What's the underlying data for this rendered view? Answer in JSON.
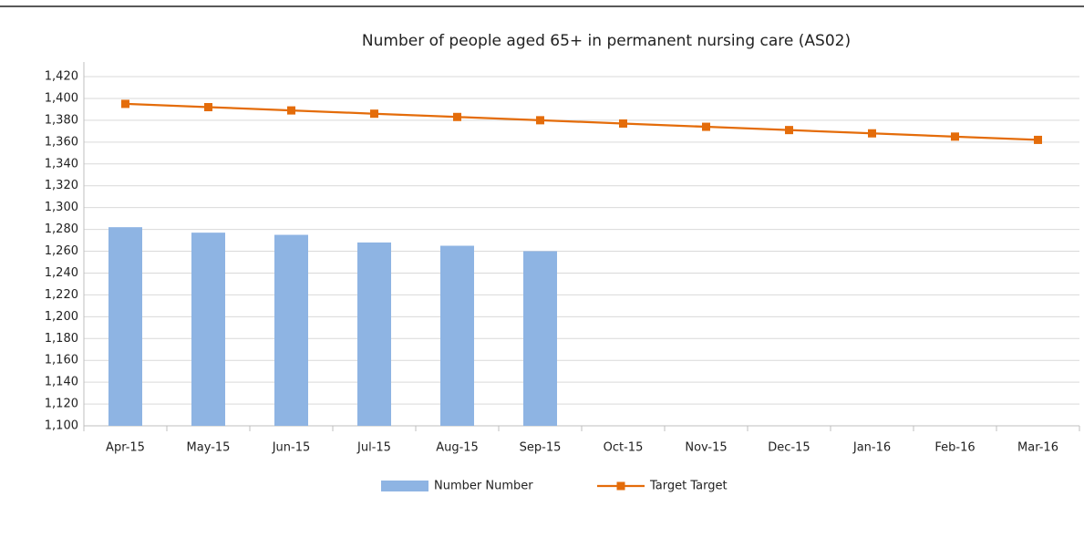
{
  "chart_data": {
    "type": "combo",
    "title": "Number of people aged 65+ in permanent nursing care (AS02)",
    "categories": [
      "Apr-15",
      "May-15",
      "Jun-15",
      "Jul-15",
      "Aug-15",
      "Sep-15",
      "Oct-15",
      "Nov-15",
      "Dec-15",
      "Jan-16",
      "Feb-16",
      "Mar-16"
    ],
    "series": [
      {
        "name": "Number Number",
        "type": "bar",
        "color": "#8eb4e3",
        "values": [
          1282,
          1277,
          1275,
          1268,
          1265,
          1260,
          null,
          null,
          null,
          null,
          null,
          null
        ]
      },
      {
        "name": "Target Target",
        "type": "line",
        "color": "#e46c0a",
        "values": [
          1395,
          1392,
          1389,
          1386,
          1383,
          1380,
          1377,
          1374,
          1371,
          1368,
          1365,
          1362
        ]
      }
    ],
    "ylim": [
      1100,
      1420
    ],
    "yticks": [
      {
        "value": 1100,
        "label": "1,100"
      },
      {
        "value": 1120,
        "label": "1,120"
      },
      {
        "value": 1140,
        "label": "1,140"
      },
      {
        "value": 1160,
        "label": "1,160"
      },
      {
        "value": 1180,
        "label": "1,180"
      },
      {
        "value": 1200,
        "label": "1,200"
      },
      {
        "value": 1220,
        "label": "1,220"
      },
      {
        "value": 1240,
        "label": "1,240"
      },
      {
        "value": 1260,
        "label": "1,260"
      },
      {
        "value": 1280,
        "label": "1,280"
      },
      {
        "value": 1300,
        "label": "1,300"
      },
      {
        "value": 1320,
        "label": "1,320"
      },
      {
        "value": 1340,
        "label": "1,340"
      },
      {
        "value": 1360,
        "label": "1,360"
      },
      {
        "value": 1380,
        "label": "1,380"
      },
      {
        "value": 1400,
        "label": "1,400"
      },
      {
        "value": 1420,
        "label": "1,420"
      }
    ],
    "grid": true,
    "legend": "bottom"
  }
}
